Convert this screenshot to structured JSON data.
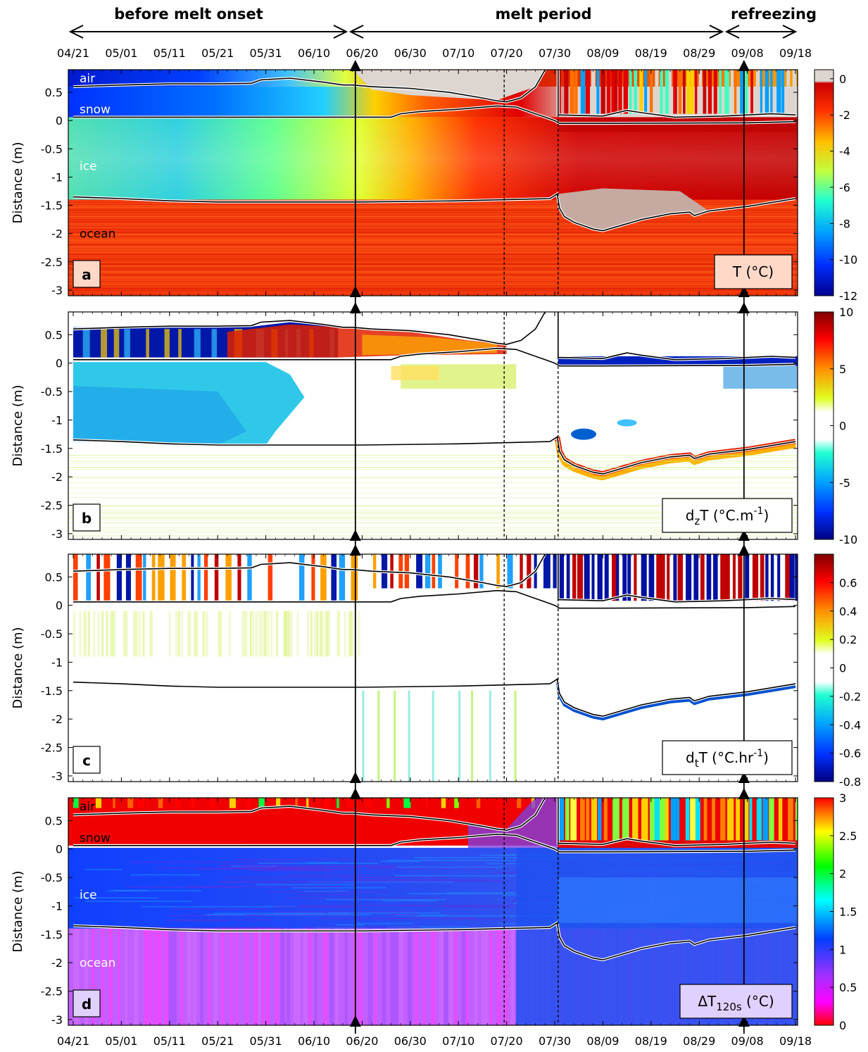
{
  "periods": [
    {
      "label": "before melt onset"
    },
    {
      "label": "melt period"
    },
    {
      "label": "refreezing"
    }
  ],
  "x_tick_labels": [
    "04/21",
    "05/01",
    "05/11",
    "05/21",
    "05/31",
    "06/10",
    "06/20",
    "06/30",
    "07/10",
    "07/20",
    "07/30",
    "08/09",
    "08/19",
    "08/29",
    "09/08",
    "09/18"
  ],
  "colors": {
    "air": "#ffffff",
    "snow": "#ffffff",
    "ice": "#ffffff",
    "ocean": "#000000"
  },
  "chart_data": [
    {
      "type": "heatmap",
      "panel_label": "a",
      "quantity_label": "T (°C)",
      "ylabel": "Distance (m)",
      "y_ticks": [
        0.5,
        0,
        -0.5,
        -1,
        -1.5,
        -2,
        -2.5,
        -3
      ],
      "ylim": [
        -3.1,
        0.9
      ],
      "colorbar": {
        "ticks": [
          "0",
          "-2",
          "-4",
          "-6",
          "-8",
          "-10",
          "-12"
        ],
        "range": [
          -12,
          0.5
        ],
        "colormap": "jet with grey above 0"
      },
      "layer_labels": [
        "air",
        "snow",
        "ice",
        "ocean"
      ]
    },
    {
      "type": "heatmap",
      "panel_label": "b",
      "quantity_label": "dzT (°C.m-1)",
      "ylabel": "Distance (m)",
      "y_ticks": [
        0.5,
        0,
        -0.5,
        -1,
        -1.5,
        -2,
        -2.5,
        -3
      ],
      "ylim": [
        -3.1,
        0.9
      ],
      "colorbar": {
        "ticks": [
          "10",
          "5",
          "0",
          "-5",
          "-10"
        ],
        "range": [
          -10,
          10
        ],
        "colormap": "jet with white band near 0"
      }
    },
    {
      "type": "heatmap",
      "panel_label": "c",
      "quantity_label": "dtT (°C.hr-1)",
      "ylabel": "Distance (m)",
      "y_ticks": [
        0.5,
        0,
        -0.5,
        -1,
        -1.5,
        -2,
        -2.5,
        -3
      ],
      "ylim": [
        -3.1,
        0.9
      ],
      "colorbar": {
        "ticks": [
          "0.6",
          "0.4",
          "0.2",
          "0",
          "-0.2",
          "-0.4",
          "-0.6",
          "-0.8"
        ],
        "range": [
          -0.8,
          0.8
        ],
        "colormap": "jet with white band near 0"
      }
    },
    {
      "type": "heatmap",
      "panel_label": "d",
      "quantity_label": "ΔT120s (°C)",
      "ylabel": "Distance (m)",
      "y_ticks": [
        0.5,
        0,
        -0.5,
        -1,
        -1.5,
        -2,
        -2.5,
        -3
      ],
      "ylim": [
        -3.1,
        0.9
      ],
      "colorbar": {
        "ticks": [
          "3",
          "2.5",
          "2",
          "1.5",
          "1",
          "0.5",
          "0"
        ],
        "range": [
          0,
          3
        ],
        "colormap": "reversed hsv"
      },
      "layer_labels": [
        "air",
        "snow",
        "ice",
        "ocean"
      ]
    }
  ],
  "label_texts": {
    "a": {
      "quantity_main": "T (°C)",
      "sub": ""
    },
    "b": {
      "quantity_main": "d",
      "sub": "z",
      "rest": "T (°C.m",
      "sup": "-1",
      "close": ")"
    },
    "c": {
      "quantity_main": "d",
      "sub": "t",
      "rest": "T (°C.hr",
      "sup": "-1",
      "close": ")"
    },
    "d": {
      "quantity_main": "ΔT",
      "sub": "120s",
      "rest": " (°C)"
    }
  }
}
